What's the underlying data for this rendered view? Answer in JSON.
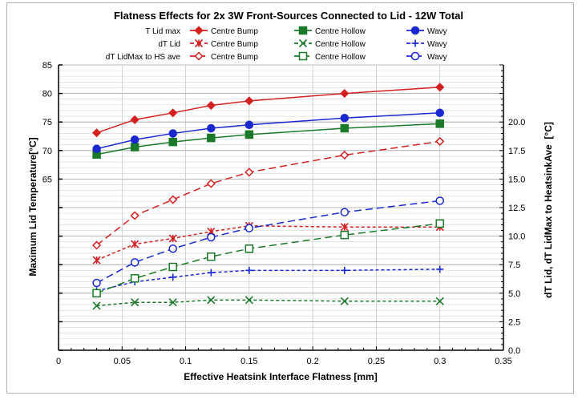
{
  "chart_data": {
    "type": "line",
    "title": "Flatness Effects for 2x 3W Front-Sources Connected to Lid - 12W Total",
    "xlabel": "Effective Heatsink Interface Flatness [mm]",
    "ylabel": "Maximum Lid Temperature[°C]",
    "y2label": "dT Lid, dT LidMax to HeatsinkAve  [°C]",
    "xlim": [
      0,
      0.35
    ],
    "ylim": [
      35,
      85
    ],
    "y2lim": [
      0,
      25
    ],
    "xticks": [
      "0",
      "0.05",
      "0.1",
      "0.15",
      "0.2",
      "0.25",
      "0.3",
      "0.35"
    ],
    "yticks": [
      "65",
      "70",
      "75",
      "80",
      "85"
    ],
    "y2ticks": [
      "0.0",
      "2.5",
      "5.0",
      "7.5",
      "10.0",
      "12.5",
      "15.0",
      "17.5",
      "20.0"
    ],
    "grid": true,
    "legend_position": "top",
    "legend_groups": [
      "T Lid max",
      "dT Lid",
      "dT LidMax to HS ave"
    ],
    "x": [
      0.03,
      0.06,
      0.09,
      0.12,
      0.15,
      0.225,
      0.3
    ],
    "series": [
      {
        "group": "T Lid max",
        "name": "Centre Bump",
        "axis": "left",
        "color": "#d42020",
        "marker": "diamond-filled",
        "dash": "solid",
        "values": [
          73.1,
          75.4,
          76.6,
          77.9,
          78.7,
          80.0,
          81.1
        ]
      },
      {
        "group": "T Lid max",
        "name": "Centre Hollow",
        "axis": "left",
        "color": "#1a7a2a",
        "marker": "square-filled",
        "dash": "solid",
        "values": [
          69.3,
          70.6,
          71.5,
          72.2,
          72.8,
          73.9,
          74.7
        ]
      },
      {
        "group": "T Lid max",
        "name": "Wavy",
        "axis": "left",
        "color": "#1a28d0",
        "marker": "circle-filled",
        "dash": "solid",
        "values": [
          70.3,
          71.9,
          73.0,
          73.9,
          74.5,
          75.7,
          76.6
        ]
      },
      {
        "group": "dT Lid",
        "name": "Centre Bump",
        "axis": "right",
        "color": "#d42020",
        "marker": "star",
        "dash": "short",
        "values": [
          7.9,
          9.3,
          9.8,
          10.4,
          10.9,
          10.8,
          10.8
        ]
      },
      {
        "group": "dT Lid",
        "name": "Centre Hollow",
        "axis": "right",
        "color": "#1a7a2a",
        "marker": "x",
        "dash": "short",
        "values": [
          3.9,
          4.2,
          4.2,
          4.4,
          4.4,
          4.3,
          4.3
        ]
      },
      {
        "group": "dT Lid",
        "name": "Wavy",
        "axis": "right",
        "color": "#1a28d0",
        "marker": "plus",
        "dash": "short",
        "values": [
          5.2,
          6.0,
          6.4,
          6.8,
          7.0,
          7.0,
          7.1
        ]
      },
      {
        "group": "dT LidMax to HS ave",
        "name": "Centre Bump",
        "axis": "right",
        "color": "#d42020",
        "marker": "diamond-open",
        "dash": "long",
        "values": [
          9.2,
          11.8,
          13.2,
          14.6,
          15.6,
          17.1,
          18.3
        ]
      },
      {
        "group": "dT LidMax to HS ave",
        "name": "Centre Hollow",
        "axis": "right",
        "color": "#1a7a2a",
        "marker": "square-open",
        "dash": "long",
        "values": [
          5.0,
          6.3,
          7.3,
          8.2,
          8.9,
          10.1,
          11.1
        ]
      },
      {
        "group": "dT LidMax to HS ave",
        "name": "Wavy",
        "axis": "right",
        "color": "#1a28d0",
        "marker": "circle-open",
        "dash": "long",
        "values": [
          5.9,
          7.7,
          8.9,
          9.9,
          10.7,
          12.1,
          13.1
        ]
      }
    ]
  }
}
